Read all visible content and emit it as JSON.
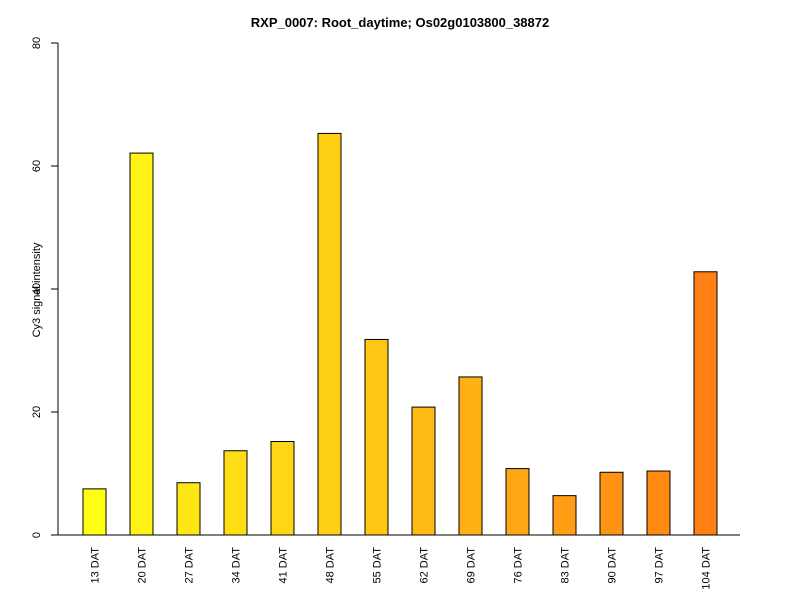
{
  "chart_data": {
    "type": "bar",
    "title": "RXP_0007: Root_daytime; Os02g0103800_38872",
    "xlabel": "",
    "ylabel": "Cy3 signal intensity",
    "ylim": [
      0,
      80
    ],
    "yticks": [
      0,
      20,
      40,
      60,
      80
    ],
    "categories": [
      "13 DAT",
      "20 DAT",
      "27 DAT",
      "34 DAT",
      "41 DAT",
      "48 DAT",
      "55 DAT",
      "62 DAT",
      "69 DAT",
      "76 DAT",
      "83 DAT",
      "90 DAT",
      "97 DAT",
      "104 DAT"
    ],
    "values": [
      7.5,
      62.1,
      8.5,
      13.7,
      15.2,
      65.3,
      31.8,
      20.8,
      25.7,
      10.8,
      6.4,
      10.2,
      10.4,
      42.8
    ],
    "colors": [
      "#FFFF14",
      "#FFF214",
      "#FFE714",
      "#FFDD14",
      "#FFD614",
      "#FFCF14",
      "#FFC614",
      "#FFBA14",
      "#FFB014",
      "#FFA614",
      "#FF9E14",
      "#FF9414",
      "#FF8A14",
      "#FF8014"
    ],
    "grid": false,
    "legend": "none"
  }
}
